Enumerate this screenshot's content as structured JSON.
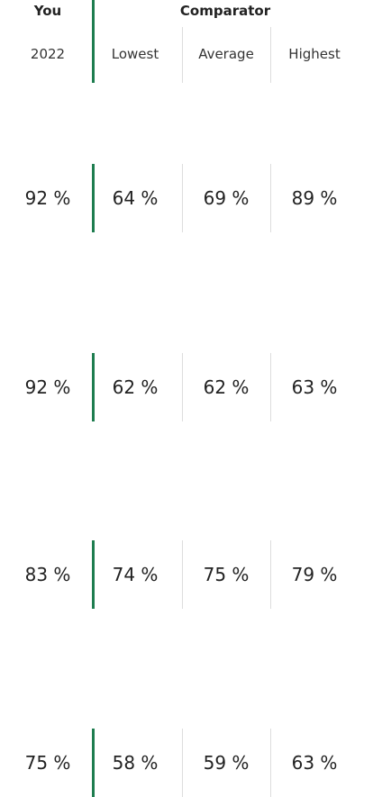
{
  "header": {
    "you": "You",
    "comparator": "Comparator"
  },
  "subheader": [
    "2022",
    "Lowest",
    "Average",
    "Highest"
  ],
  "table": {
    "rows": [
      [
        "92 %",
        "64 %",
        "69 %",
        "89 %"
      ],
      [
        "92 %",
        "62 %",
        "62 %",
        "63 %"
      ],
      [
        "83 %",
        "74 %",
        "75 %",
        "79 %"
      ],
      [
        "75 %",
        "58 %",
        "59 %",
        "63 %"
      ]
    ]
  }
}
